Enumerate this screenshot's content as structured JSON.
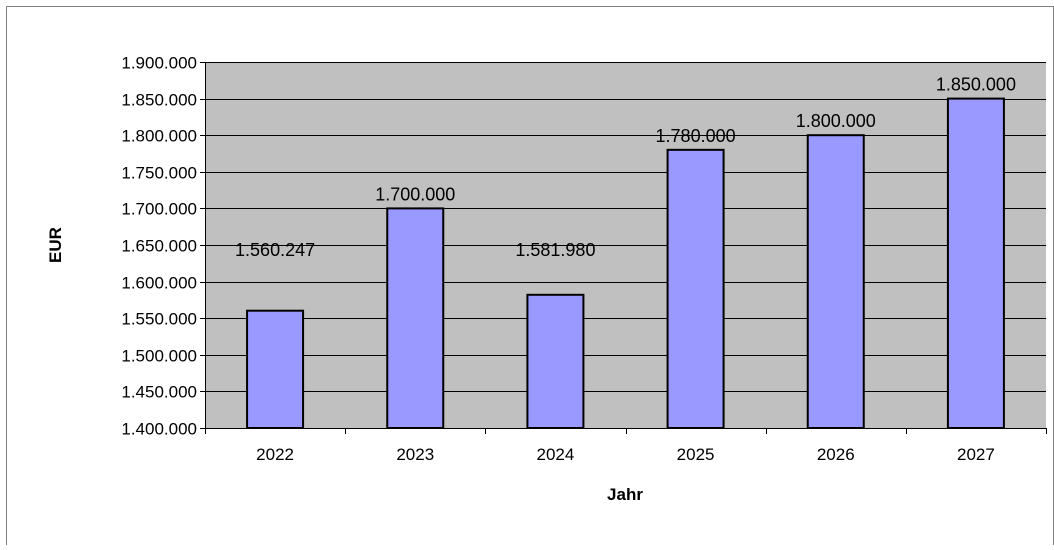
{
  "chart_data": {
    "type": "bar",
    "title": "",
    "xlabel": "Jahr",
    "ylabel": "EUR",
    "categories": [
      "2022",
      "2023",
      "2024",
      "2025",
      "2026",
      "2027"
    ],
    "values": [
      1560247,
      1700000,
      1581980,
      1780000,
      1800000,
      1850000
    ],
    "data_labels": [
      "1.560.247",
      "1.700.000",
      "1.581.980",
      "1.780.000",
      "1.800.000",
      "1.850.000"
    ],
    "ylim": [
      1400000,
      1900000
    ],
    "y_ticks": [
      1400000,
      1450000,
      1500000,
      1550000,
      1600000,
      1650000,
      1700000,
      1750000,
      1800000,
      1850000,
      1900000
    ],
    "y_tick_labels": [
      "1.400.000",
      "1.450.000",
      "1.500.000",
      "1.550.000",
      "1.600.000",
      "1.650.000",
      "1.700.000",
      "1.750.000",
      "1.800.000",
      "1.850.000",
      "1.900.000"
    ],
    "grid": true,
    "legend": "none",
    "colors": {
      "bar_fill": "#9999ff",
      "bar_stroke": "#000000",
      "plot_background": "#c0c0c0",
      "grid": "#000000",
      "frame": "#808080"
    }
  }
}
